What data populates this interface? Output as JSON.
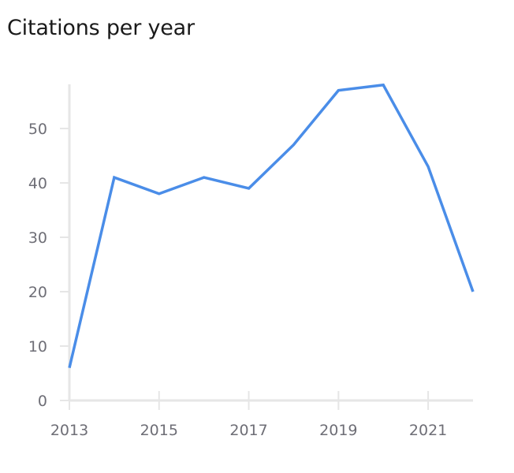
{
  "title": "Citations per year",
  "colors": {
    "line": "#4a8de8",
    "axis": "#e6e6e6",
    "tick_text": "#6e6e76",
    "title": "#1a1a1a"
  },
  "chart_data": {
    "type": "line",
    "title": "Citations per year",
    "xlabel": "",
    "ylabel": "",
    "x": [
      2013,
      2014,
      2015,
      2016,
      2017,
      2018,
      2019,
      2020,
      2021,
      2022
    ],
    "series": [
      {
        "values": [
          6,
          41,
          38,
          41,
          39,
          47,
          57,
          58,
          43,
          20
        ]
      }
    ],
    "x_ticks": [
      "2013",
      "2015",
      "2017",
      "2019",
      "2021"
    ],
    "y_ticks": [
      "0",
      "10",
      "20",
      "30",
      "40",
      "50"
    ],
    "xlim": [
      2013,
      2022
    ],
    "ylim": [
      0,
      58
    ],
    "grid": false,
    "legend": "none"
  }
}
